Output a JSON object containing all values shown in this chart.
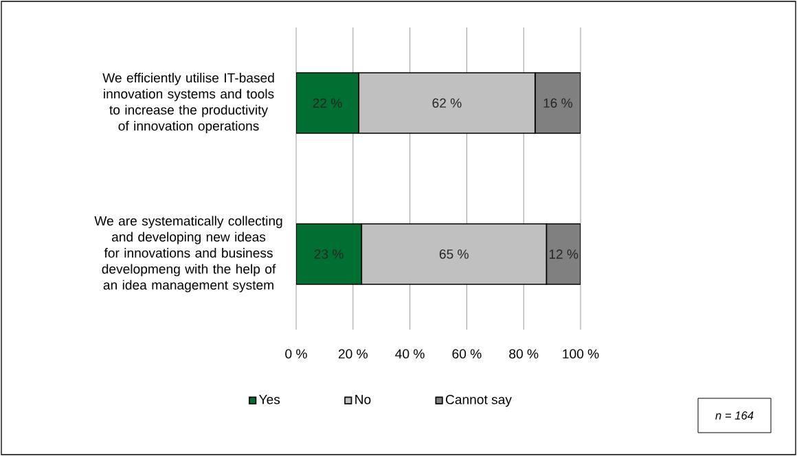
{
  "chart_data": {
    "type": "bar",
    "orientation": "horizontal",
    "stacked": true,
    "categories": [
      "We efficiently utilise IT-based innovation systems and tools to increase the productivity of innovation operations",
      "We are systematically collecting and developing new ideas for innovations and business developmeng with the help of an idea management system"
    ],
    "series": [
      {
        "name": "Yes",
        "color": "#006f31",
        "values": [
          22,
          23
        ],
        "value_labels": [
          "22 %",
          "23 %"
        ]
      },
      {
        "name": "No",
        "color": "#c0c0c0",
        "values": [
          62,
          65
        ],
        "value_labels": [
          "62 %",
          "65 %"
        ]
      },
      {
        "name": "Cannot say",
        "color": "#808080",
        "values": [
          16,
          12
        ],
        "value_labels": [
          "16 %",
          "12 %"
        ]
      }
    ],
    "xlim": [
      0,
      100
    ],
    "xticks": [
      {
        "value": 0,
        "label": "0 %"
      },
      {
        "value": 20,
        "label": "20 %"
      },
      {
        "value": 40,
        "label": "40 %"
      },
      {
        "value": 60,
        "label": "60 %"
      },
      {
        "value": 80,
        "label": "80 %"
      },
      {
        "value": 100,
        "label": "100 %"
      }
    ],
    "grid": "x",
    "legend": "bottom",
    "annotations": [
      "n = 164"
    ]
  }
}
